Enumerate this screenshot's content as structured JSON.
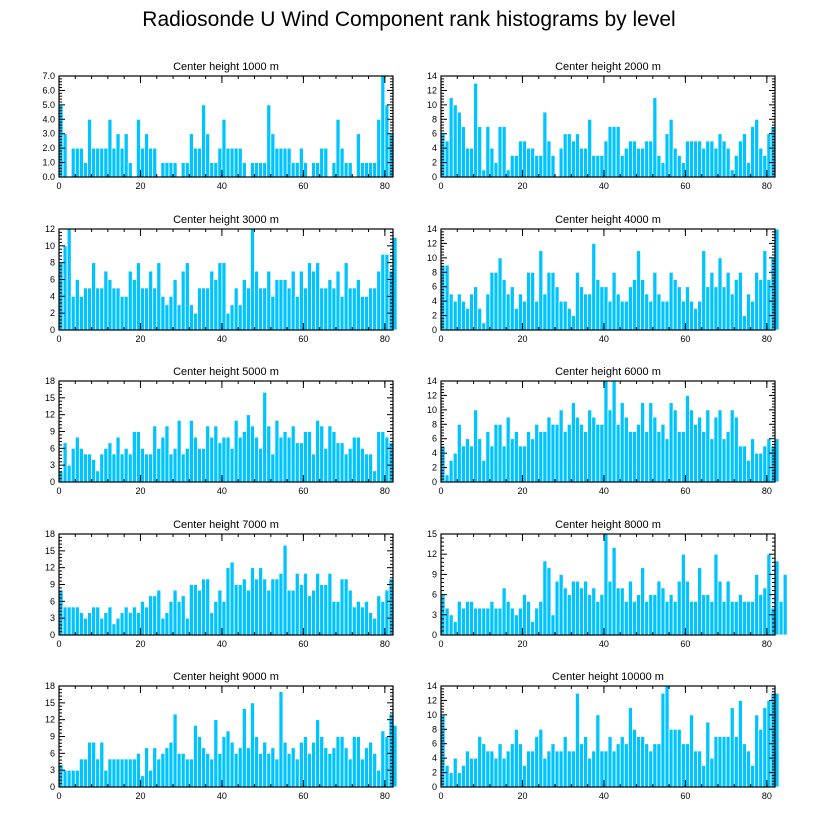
{
  "title": "Radiosonde U Wind Component rank histograms by level",
  "colors": {
    "bar": "#00c4ff",
    "bar_edge": "#ffffff",
    "axis": "#000000"
  },
  "chart_data": [
    {
      "type": "bar",
      "title": "Center height 1000 m",
      "xlim": [
        0,
        82
      ],
      "ylim": [
        0,
        7
      ],
      "xticks": [
        0,
        20,
        40,
        60,
        80
      ],
      "yticks": [
        0,
        1,
        2,
        3,
        4,
        5,
        6,
        7
      ],
      "ytick_labels": [
        "0.0",
        "1.0",
        "2.0",
        "3.0",
        "4.0",
        "5.0",
        "6.0",
        "7.0"
      ],
      "values": [
        5,
        3,
        0,
        2,
        2,
        2,
        1,
        4,
        2,
        2,
        2,
        2,
        4,
        2,
        3,
        2,
        3,
        1,
        0,
        4,
        2,
        3,
        2,
        2,
        0,
        1,
        1,
        1,
        1,
        0,
        1,
        1,
        3,
        2,
        2,
        5,
        3,
        1,
        1,
        2,
        4,
        2,
        2,
        2,
        2,
        1,
        0,
        1,
        1,
        1,
        1,
        5,
        3,
        2,
        2,
        2,
        2,
        1,
        1,
        2,
        1,
        0,
        1,
        1,
        2,
        2,
        0,
        1,
        4,
        2,
        1,
        1,
        0,
        3,
        1,
        1,
        1,
        1,
        4,
        7,
        5,
        3
      ]
    },
    {
      "type": "bar",
      "title": "Center height 2000 m",
      "xlim": [
        0,
        82
      ],
      "ylim": [
        0,
        14
      ],
      "xticks": [
        0,
        20,
        40,
        60,
        80
      ],
      "yticks": [
        0,
        2,
        4,
        6,
        8,
        10,
        12,
        14
      ],
      "ytick_labels": [
        "0",
        "2",
        "4",
        "6",
        "8",
        "10",
        "12",
        "14"
      ],
      "values": [
        6,
        5,
        11,
        10,
        9,
        7,
        4,
        4,
        13,
        7,
        1,
        7,
        4,
        2,
        7,
        7,
        1,
        3,
        3,
        5,
        5,
        4,
        4,
        3,
        3,
        9,
        5,
        3,
        0,
        4,
        6,
        6,
        5,
        6,
        4,
        4,
        8,
        3,
        3,
        3,
        5,
        7,
        7,
        7,
        3,
        4,
        5,
        5,
        4,
        4,
        5,
        5,
        11,
        3,
        2,
        6,
        8,
        4,
        3,
        2,
        5,
        5,
        5,
        5,
        4,
        5,
        5,
        4,
        6,
        5,
        4,
        1,
        3,
        5,
        6,
        2,
        7,
        8,
        4,
        3,
        6,
        7
      ]
    },
    {
      "type": "bar",
      "title": "Center height 3000 m",
      "xlim": [
        0,
        82
      ],
      "ylim": [
        0,
        12
      ],
      "xticks": [
        0,
        20,
        40,
        60,
        80
      ],
      "yticks": [
        0,
        2,
        4,
        6,
        8,
        10,
        12
      ],
      "ytick_labels": [
        "0",
        "2",
        "4",
        "6",
        "8",
        "10",
        "12"
      ],
      "values": [
        8,
        10,
        12,
        4,
        6,
        4,
        5,
        5,
        8,
        5,
        5,
        7,
        6,
        5,
        5,
        4,
        4,
        7,
        6,
        8,
        5,
        5,
        7,
        5,
        8,
        4,
        3,
        4,
        6,
        3,
        7,
        8,
        3,
        2,
        5,
        5,
        5,
        7,
        6,
        8,
        8,
        2,
        3,
        5,
        3,
        6,
        5,
        12,
        7,
        5,
        5,
        7,
        4,
        6,
        6,
        6,
        5,
        7,
        4,
        7,
        5,
        8,
        7,
        8,
        5,
        5,
        6,
        5,
        7,
        4,
        8,
        5,
        5,
        6,
        4,
        4,
        5,
        5,
        7,
        9,
        9,
        7,
        11
      ]
    },
    {
      "type": "bar",
      "title": "Center height 4000 m",
      "xlim": [
        0,
        82
      ],
      "ylim": [
        0,
        14
      ],
      "xticks": [
        0,
        20,
        40,
        60,
        80
      ],
      "yticks": [
        0,
        2,
        4,
        6,
        8,
        10,
        12,
        14
      ],
      "ytick_labels": [
        "0",
        "2",
        "4",
        "6",
        "8",
        "10",
        "12",
        "14"
      ],
      "values": [
        9,
        9,
        5,
        4,
        5,
        4,
        3,
        5,
        6,
        3,
        1,
        5,
        8,
        8,
        10,
        7,
        5,
        6,
        3,
        5,
        4,
        8,
        8,
        4,
        11,
        5,
        8,
        8,
        6,
        4,
        4,
        3,
        2,
        8,
        6,
        5,
        5,
        12,
        7,
        6,
        6,
        4,
        8,
        5,
        4,
        4,
        6,
        7,
        11,
        7,
        5,
        4,
        8,
        5,
        4,
        4,
        8,
        7,
        6,
        4,
        6,
        4,
        3,
        4,
        11,
        6,
        8,
        6,
        10,
        6,
        8,
        5,
        7,
        8,
        2,
        5,
        4,
        8,
        7,
        11,
        7,
        10,
        14
      ]
    },
    {
      "type": "bar",
      "title": "Center height 5000 m",
      "xlim": [
        0,
        82
      ],
      "ylim": [
        0,
        18
      ],
      "xticks": [
        0,
        20,
        40,
        60,
        80
      ],
      "yticks": [
        0,
        3,
        6,
        9,
        12,
        15,
        18
      ],
      "ytick_labels": [
        "0",
        "3",
        "6",
        "9",
        "12",
        "15",
        "18"
      ],
      "values": [
        2,
        7,
        3,
        6,
        8,
        6,
        5,
        5,
        4,
        2,
        5,
        6,
        7,
        5,
        8,
        5,
        6,
        5,
        9,
        9,
        6,
        5,
        5,
        10,
        6,
        8,
        10,
        5,
        6,
        11,
        5,
        6,
        11,
        8,
        6,
        6,
        10,
        8,
        10,
        7,
        8,
        8,
        6,
        11,
        8,
        9,
        12,
        10,
        8,
        6,
        16,
        10,
        5,
        11,
        8,
        9,
        8,
        10,
        7,
        7,
        9,
        9,
        5,
        11,
        10,
        6,
        10,
        9,
        7,
        7,
        5,
        6,
        8,
        8,
        6,
        5,
        5,
        2,
        9,
        9,
        8,
        7
      ]
    },
    {
      "type": "bar",
      "title": "Center height 6000 m",
      "xlim": [
        0,
        82
      ],
      "ylim": [
        0,
        14
      ],
      "xticks": [
        0,
        20,
        40,
        60,
        80
      ],
      "yticks": [
        0,
        2,
        4,
        6,
        8,
        10,
        12,
        14
      ],
      "ytick_labels": [
        "0",
        "2",
        "4",
        "6",
        "8",
        "10",
        "12",
        "14"
      ],
      "values": [
        5,
        1,
        3,
        4,
        8,
        5,
        6,
        5,
        10,
        6,
        3,
        7,
        5,
        8,
        8,
        5,
        9,
        6,
        7,
        5,
        5,
        7,
        6,
        8,
        7,
        7,
        9,
        8,
        8,
        10,
        7,
        8,
        11,
        9,
        8,
        7,
        10,
        9,
        8,
        8,
        14,
        10,
        14,
        8,
        11,
        9,
        7,
        7,
        8,
        11,
        7,
        11,
        9,
        7,
        8,
        6,
        11,
        10,
        7,
        7,
        12,
        10,
        8,
        9,
        7,
        10,
        6,
        9,
        10,
        6,
        7,
        10,
        9,
        5,
        5,
        3,
        6,
        4,
        4,
        5,
        6,
        5,
        6
      ]
    },
    {
      "type": "bar",
      "title": "Center height 7000 m",
      "xlim": [
        0,
        82
      ],
      "ylim": [
        0,
        18
      ],
      "xticks": [
        0,
        20,
        40,
        60,
        80
      ],
      "yticks": [
        0,
        3,
        6,
        9,
        12,
        15,
        18
      ],
      "ytick_labels": [
        "0",
        "3",
        "6",
        "9",
        "12",
        "15",
        "18"
      ],
      "values": [
        8,
        5,
        5,
        5,
        5,
        4,
        3,
        4,
        5,
        5,
        3,
        4,
        5,
        2,
        3,
        4,
        5,
        4,
        5,
        4,
        6,
        5,
        7,
        7,
        8,
        3,
        4,
        6,
        8,
        6,
        7,
        3,
        9,
        9,
        8,
        10,
        10,
        4,
        6,
        8,
        6,
        12,
        13,
        9,
        9,
        10,
        8,
        12,
        10,
        12,
        10,
        8,
        10,
        10,
        11,
        16,
        8,
        8,
        11,
        9,
        11,
        7,
        8,
        11,
        9,
        9,
        11,
        6,
        6,
        10,
        10,
        8,
        5,
        6,
        5,
        6,
        4,
        3,
        7,
        6,
        8,
        10
      ]
    },
    {
      "type": "bar",
      "title": "Center height 8000 m",
      "xlim": [
        0,
        82
      ],
      "ylim": [
        0,
        15
      ],
      "xticks": [
        0,
        20,
        40,
        60,
        80
      ],
      "yticks": [
        0,
        3,
        6,
        9,
        12,
        15
      ],
      "ytick_labels": [
        "0",
        "3",
        "6",
        "9",
        "12",
        "15"
      ],
      "values": [
        6,
        4,
        3,
        2,
        5,
        4,
        5,
        5,
        4,
        4,
        4,
        4,
        5,
        4,
        4,
        7,
        5,
        4,
        3,
        4,
        6,
        5,
        2,
        4,
        5,
        11,
        10,
        3,
        8,
        9,
        7,
        6,
        8,
        8,
        7,
        8,
        6,
        7,
        5,
        6,
        15,
        8,
        13,
        7,
        7,
        5,
        8,
        5,
        6,
        10,
        5,
        6,
        6,
        8,
        7,
        5,
        6,
        5,
        8,
        12,
        8,
        5,
        5,
        10,
        6,
        6,
        5,
        12,
        8,
        5,
        8,
        5,
        5,
        6,
        5,
        5,
        5,
        9,
        6,
        7,
        12,
        4,
        11,
        5,
        9
      ]
    },
    {
      "type": "bar",
      "title": "Center height 9000 m",
      "xlim": [
        0,
        82
      ],
      "ylim": [
        0,
        18
      ],
      "xticks": [
        0,
        20,
        40,
        60,
        80
      ],
      "yticks": [
        0,
        3,
        6,
        9,
        12,
        15,
        18
      ],
      "ytick_labels": [
        "0",
        "3",
        "6",
        "9",
        "12",
        "15",
        "18"
      ],
      "values": [
        4,
        3,
        3,
        3,
        3,
        5,
        5,
        8,
        8,
        5,
        8,
        3,
        5,
        5,
        5,
        5,
        5,
        5,
        5,
        6,
        2,
        7,
        3,
        7,
        5,
        6,
        7,
        8,
        13,
        6,
        6,
        5,
        5,
        11,
        9,
        7,
        6,
        5,
        12,
        6,
        9,
        10,
        8,
        6,
        7,
        14,
        7,
        15,
        9,
        6,
        8,
        6,
        7,
        5,
        17,
        8,
        6,
        7,
        5,
        8,
        9,
        6,
        8,
        12,
        9,
        7,
        6,
        7,
        9,
        9,
        7,
        5,
        9,
        9,
        5,
        7,
        8,
        6,
        3,
        10,
        9,
        13,
        11
      ]
    },
    {
      "type": "bar",
      "title": "Center height 10000 m",
      "xlim": [
        0,
        82
      ],
      "ylim": [
        0,
        14
      ],
      "xticks": [
        0,
        20,
        40,
        60,
        80
      ],
      "yticks": [
        0,
        2,
        4,
        6,
        8,
        10,
        12,
        14
      ],
      "ytick_labels": [
        "0",
        "2",
        "4",
        "6",
        "8",
        "10",
        "12",
        "14"
      ],
      "values": [
        10,
        3,
        2,
        4,
        2,
        3,
        5,
        4,
        4,
        7,
        6,
        5,
        5,
        4,
        6,
        4,
        5,
        6,
        8,
        6,
        3,
        5,
        5,
        7,
        8,
        4,
        5,
        6,
        5,
        5,
        7,
        5,
        5,
        13,
        6,
        7,
        4,
        5,
        10,
        5,
        5,
        7,
        5,
        6,
        7,
        6,
        11,
        8,
        7,
        7,
        6,
        5,
        6,
        6,
        13,
        14,
        8,
        8,
        8,
        6,
        6,
        10,
        5,
        5,
        3,
        9,
        4,
        7,
        7,
        7,
        7,
        11,
        7,
        12,
        6,
        5,
        3,
        10,
        8,
        11,
        12,
        13,
        13
      ]
    }
  ]
}
